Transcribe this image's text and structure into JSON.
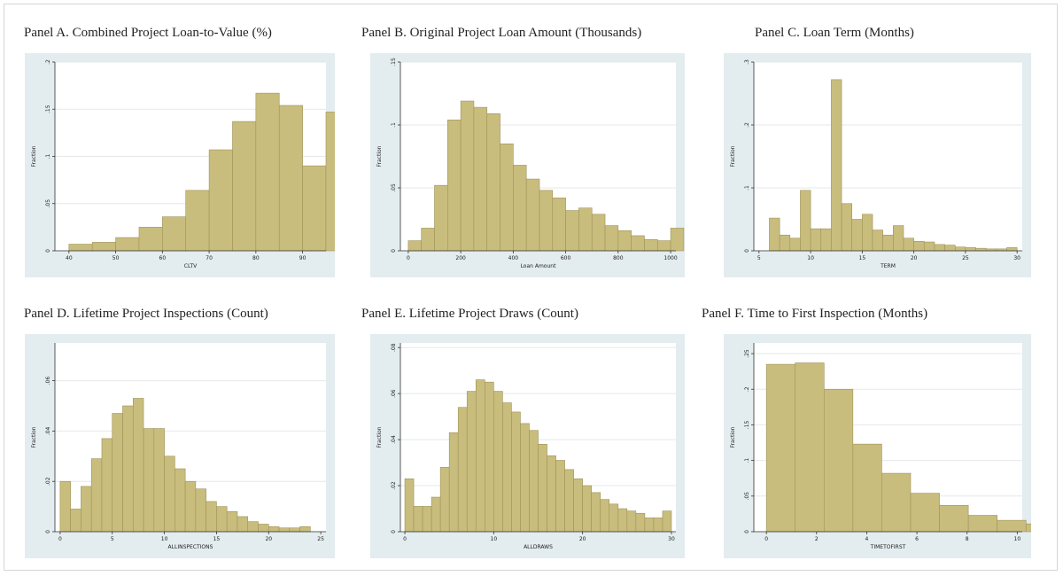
{
  "colors": {
    "bar": "#c9bd7e",
    "bar_stroke": "#9e9258",
    "plot_bg": "#ffffff",
    "box_bg": "#e3ecef"
  },
  "chart_data": [
    {
      "id": "A",
      "type": "bar",
      "title": "Panel A. Combined Project Loan-to-Value  (%)",
      "xlabel": "CLTV",
      "ylabel": "Fraction",
      "xlim": [
        37,
        95
      ],
      "ylim": [
        0,
        0.2
      ],
      "xticks": [
        40,
        50,
        60,
        70,
        80,
        90
      ],
      "yticks": [
        0,
        0.05,
        0.1,
        0.15,
        0.2
      ],
      "ytick_labels": [
        "0",
        ".05",
        ".1",
        ".15",
        ".2"
      ],
      "bin_start": 40,
      "bin_width": 5,
      "values": [
        0.007,
        0.009,
        0.014,
        0.025,
        0.036,
        0.064,
        0.107,
        0.137,
        0.167,
        0.154,
        0.09,
        0.147
      ]
    },
    {
      "id": "B",
      "type": "bar",
      "title": "Panel B. Original Project Loan Amount (Thousands)",
      "xlabel": "Loan Amount",
      "ylabel": "Fraction",
      "xlim": [
        -30,
        1020
      ],
      "ylim": [
        0,
        0.15
      ],
      "xticks": [
        0,
        200,
        400,
        600,
        800,
        1000
      ],
      "yticks": [
        0,
        0.05,
        0.1,
        0.15
      ],
      "ytick_labels": [
        "0",
        ".05",
        ".1",
        ".15"
      ],
      "bin_start": 0,
      "bin_width": 50,
      "values": [
        0.008,
        0.018,
        0.052,
        0.104,
        0.119,
        0.114,
        0.109,
        0.085,
        0.068,
        0.057,
        0.048,
        0.042,
        0.032,
        0.034,
        0.029,
        0.02,
        0.016,
        0.012,
        0.009,
        0.008,
        0.018
      ]
    },
    {
      "id": "C",
      "type": "bar",
      "title": "Panel C. Loan Term (Months)",
      "xlabel": "TERM",
      "ylabel": "Fraction",
      "xlim": [
        4.5,
        30.5
      ],
      "ylim": [
        0,
        0.3
      ],
      "xticks": [
        5,
        10,
        15,
        20,
        25,
        30
      ],
      "yticks": [
        0,
        0.1,
        0.2,
        0.3
      ],
      "ytick_labels": [
        "0",
        ".1",
        ".2",
        ".3"
      ],
      "bin_start": 6,
      "bin_width": 1,
      "values": [
        0.052,
        0.025,
        0.02,
        0.096,
        0.035,
        0.035,
        0.272,
        0.075,
        0.05,
        0.058,
        0.033,
        0.025,
        0.04,
        0.02,
        0.015,
        0.014,
        0.01,
        0.009,
        0.006,
        0.005,
        0.004,
        0.003,
        0.003,
        0.005
      ]
    },
    {
      "id": "D",
      "type": "bar",
      "title": "Panel D. Lifetime Project Inspections (Count)",
      "xlabel": "ALLINSPECTIONS",
      "ylabel": "Fraction",
      "xlim": [
        -0.5,
        25.5
      ],
      "ylim": [
        0,
        0.075
      ],
      "xticks": [
        0,
        5,
        10,
        15,
        20,
        25
      ],
      "yticks": [
        0,
        0.02,
        0.04,
        0.06
      ],
      "ytick_labels": [
        "0",
        ".02",
        ".04",
        ".06"
      ],
      "bin_start": 0,
      "bin_width": 1,
      "values": [
        0.02,
        0.009,
        0.018,
        0.029,
        0.037,
        0.047,
        0.05,
        0.053,
        0.041,
        0.041,
        0.03,
        0.025,
        0.02,
        0.017,
        0.012,
        0.01,
        0.008,
        0.006,
        0.004,
        0.003,
        0.002,
        0.0015,
        0.0015,
        0.002
      ]
    },
    {
      "id": "E",
      "type": "bar",
      "title": "Panel E.  Lifetime Project Draws (Count)",
      "xlabel": "ALLDRAWS",
      "ylabel": "Fraction",
      "xlim": [
        -0.5,
        30.5
      ],
      "ylim": [
        0,
        0.082
      ],
      "xticks": [
        0,
        10,
        20,
        30
      ],
      "yticks": [
        0,
        0.02,
        0.04,
        0.06,
        0.08
      ],
      "ytick_labels": [
        "0",
        ".02",
        ".04",
        ".06",
        ".08"
      ],
      "bin_start": 0,
      "bin_width": 1,
      "values": [
        0.023,
        0.011,
        0.011,
        0.015,
        0.028,
        0.043,
        0.054,
        0.061,
        0.066,
        0.065,
        0.061,
        0.056,
        0.052,
        0.047,
        0.044,
        0.038,
        0.033,
        0.031,
        0.027,
        0.023,
        0.02,
        0.017,
        0.014,
        0.012,
        0.01,
        0.009,
        0.008,
        0.006,
        0.006,
        0.009
      ]
    },
    {
      "id": "F",
      "type": "bar",
      "title": "Panel F. Time to First Inspection (Months)",
      "xlabel": "TIMETOFIRST",
      "ylabel": "Fraction",
      "xlim": [
        -0.5,
        10.2
      ],
      "ylim": [
        0,
        0.265
      ],
      "xticks": [
        0,
        2,
        4,
        6,
        8,
        10
      ],
      "yticks": [
        0,
        0.05,
        0.1,
        0.15,
        0.2,
        0.25
      ],
      "ytick_labels": [
        "0",
        ".05",
        ".1",
        ".15",
        ".2",
        ".25"
      ],
      "bin_start": 0,
      "bin_width": 1.15,
      "values": [
        0.235,
        0.237,
        0.2,
        0.123,
        0.082,
        0.054,
        0.037,
        0.023,
        0.016,
        0.011
      ]
    }
  ]
}
